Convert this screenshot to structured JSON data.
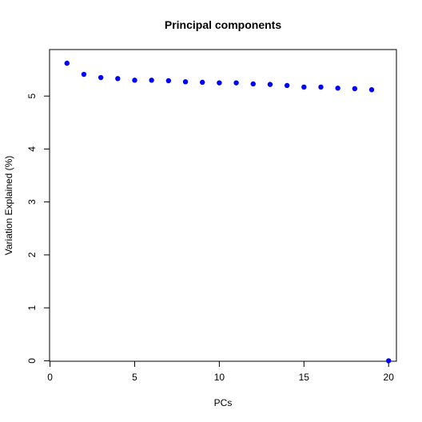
{
  "chart_data": {
    "type": "scatter",
    "title": "Principal components",
    "xlabel": "PCs",
    "ylabel": "Variation Explained (%)",
    "xlim": [
      0,
      20
    ],
    "ylim": [
      0,
      5.7
    ],
    "xticks": [
      0,
      5,
      10,
      15,
      20
    ],
    "yticks": [
      0,
      1,
      2,
      3,
      4,
      5
    ],
    "grid": false,
    "legend": "none",
    "point_color": "#0000ff",
    "x": [
      1,
      2,
      3,
      4,
      5,
      6,
      7,
      8,
      9,
      10,
      11,
      12,
      13,
      14,
      15,
      16,
      17,
      18,
      19,
      20
    ],
    "y": [
      5.62,
      5.41,
      5.35,
      5.33,
      5.3,
      5.3,
      5.29,
      5.27,
      5.26,
      5.25,
      5.25,
      5.23,
      5.22,
      5.2,
      5.17,
      5.17,
      5.15,
      5.14,
      5.12,
      0.0
    ]
  }
}
